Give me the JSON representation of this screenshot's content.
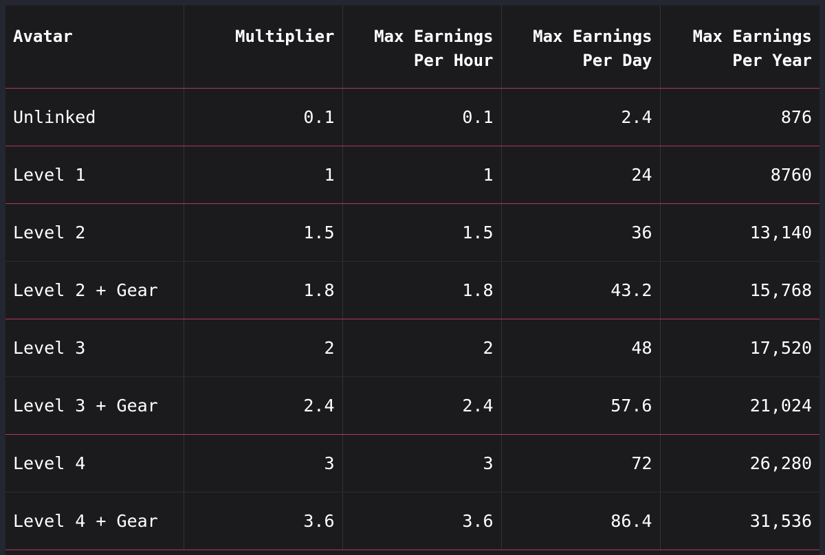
{
  "table": {
    "headers": [
      {
        "key": "avatar",
        "lines": [
          "Avatar"
        ],
        "align": "left"
      },
      {
        "key": "multiplier",
        "lines": [
          "Multiplier"
        ],
        "align": "right"
      },
      {
        "key": "per-hour",
        "lines": [
          "Max Earnings",
          "Per Hour"
        ],
        "align": "right"
      },
      {
        "key": "per-day",
        "lines": [
          "Max Earnings",
          "Per Day"
        ],
        "align": "right"
      },
      {
        "key": "per-year",
        "lines": [
          "Max Earnings",
          "Per Year"
        ],
        "align": "right"
      }
    ],
    "rows": [
      [
        "Unlinked",
        "0.1",
        "0.1",
        "2.4",
        "876"
      ],
      [
        "Level 1",
        "1",
        "1",
        "24",
        "8760"
      ],
      [
        "Level 2",
        "1.5",
        "1.5",
        "36",
        "13,140"
      ],
      [
        "Level 2 + Gear",
        "1.8",
        "1.8",
        "43.2",
        "15,768"
      ],
      [
        "Level 3",
        "2",
        "2",
        "48",
        "17,520"
      ],
      [
        "Level 3 + Gear",
        "2.4",
        "2.4",
        "57.6",
        "21,024"
      ],
      [
        "Level 4",
        "3",
        "3",
        "72",
        "26,280"
      ],
      [
        "Level 4 + Gear",
        "3.6",
        "3.6",
        "86.4",
        "31,536"
      ]
    ],
    "row_separators": [
      "strong",
      "strong",
      "weak",
      "strong",
      "weak",
      "strong",
      "weak",
      "strong"
    ]
  },
  "colors": {
    "background": "#1b1b1d",
    "outer": "#242630",
    "accent_separator": "#b7365c",
    "text": "#ffffff"
  }
}
